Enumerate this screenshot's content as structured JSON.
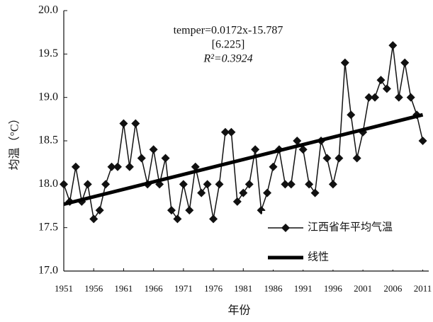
{
  "chart_data": {
    "type": "line",
    "x_label": "年份",
    "y_label": "均温（°C）",
    "annotations": [
      "temper=0.0172x-15.787",
      "[6.225]",
      "R²=0.3924"
    ],
    "x": [
      1951,
      1952,
      1953,
      1954,
      1955,
      1956,
      1957,
      1958,
      1959,
      1960,
      1961,
      1962,
      1963,
      1964,
      1965,
      1966,
      1967,
      1968,
      1969,
      1970,
      1971,
      1972,
      1973,
      1974,
      1975,
      1976,
      1977,
      1978,
      1979,
      1980,
      1981,
      1982,
      1983,
      1984,
      1985,
      1986,
      1987,
      1988,
      1989,
      1990,
      1991,
      1992,
      1993,
      1994,
      1995,
      1996,
      1997,
      1998,
      1999,
      2000,
      2001,
      2002,
      2003,
      2004,
      2005,
      2006,
      2007,
      2008,
      2009,
      2010,
      2011
    ],
    "series": [
      {
        "name": "江西省年平均气温",
        "color": "#111111",
        "marker": "diamond",
        "values": [
          18.0,
          17.8,
          18.2,
          17.8,
          18.0,
          17.6,
          17.7,
          18.0,
          18.2,
          18.2,
          18.7,
          18.2,
          18.7,
          18.3,
          18.0,
          18.4,
          18.0,
          18.3,
          17.7,
          17.6,
          18.0,
          17.7,
          18.2,
          17.9,
          18.0,
          17.6,
          18.0,
          18.6,
          18.6,
          17.8,
          17.9,
          18.0,
          18.4,
          17.7,
          17.9,
          18.2,
          18.4,
          18.0,
          18.0,
          18.5,
          18.4,
          18.0,
          17.9,
          18.5,
          18.3,
          18.0,
          18.3,
          19.4,
          18.8,
          18.3,
          18.6,
          19.0,
          19.0,
          19.2,
          19.1,
          19.6,
          19.0,
          19.4,
          19.0,
          18.8,
          18.5
        ]
      },
      {
        "name": "线性",
        "color": "#000000",
        "trend": true,
        "x": [
          1951,
          2011
        ],
        "values": [
          17.77,
          18.8
        ]
      }
    ],
    "xlim": [
      1951,
      2012
    ],
    "xticks": [
      1951,
      1956,
      1961,
      1966,
      1971,
      1976,
      1981,
      1986,
      1991,
      1996,
      2001,
      2006,
      2011
    ],
    "ylim": [
      17.0,
      20.0
    ],
    "yticks": [
      {
        "value": 17.0,
        "label": "17.0"
      },
      {
        "value": 17.5,
        "label": "17.5"
      },
      {
        "value": 18.0,
        "label": "18.0"
      },
      {
        "value": 18.5,
        "label": "18.5"
      },
      {
        "value": 19.0,
        "label": "19.0"
      },
      {
        "value": 19.5,
        "label": "19.5"
      },
      {
        "value": 20.0,
        "label": "20.0"
      }
    ],
    "grid": false,
    "legend": "lower right"
  }
}
